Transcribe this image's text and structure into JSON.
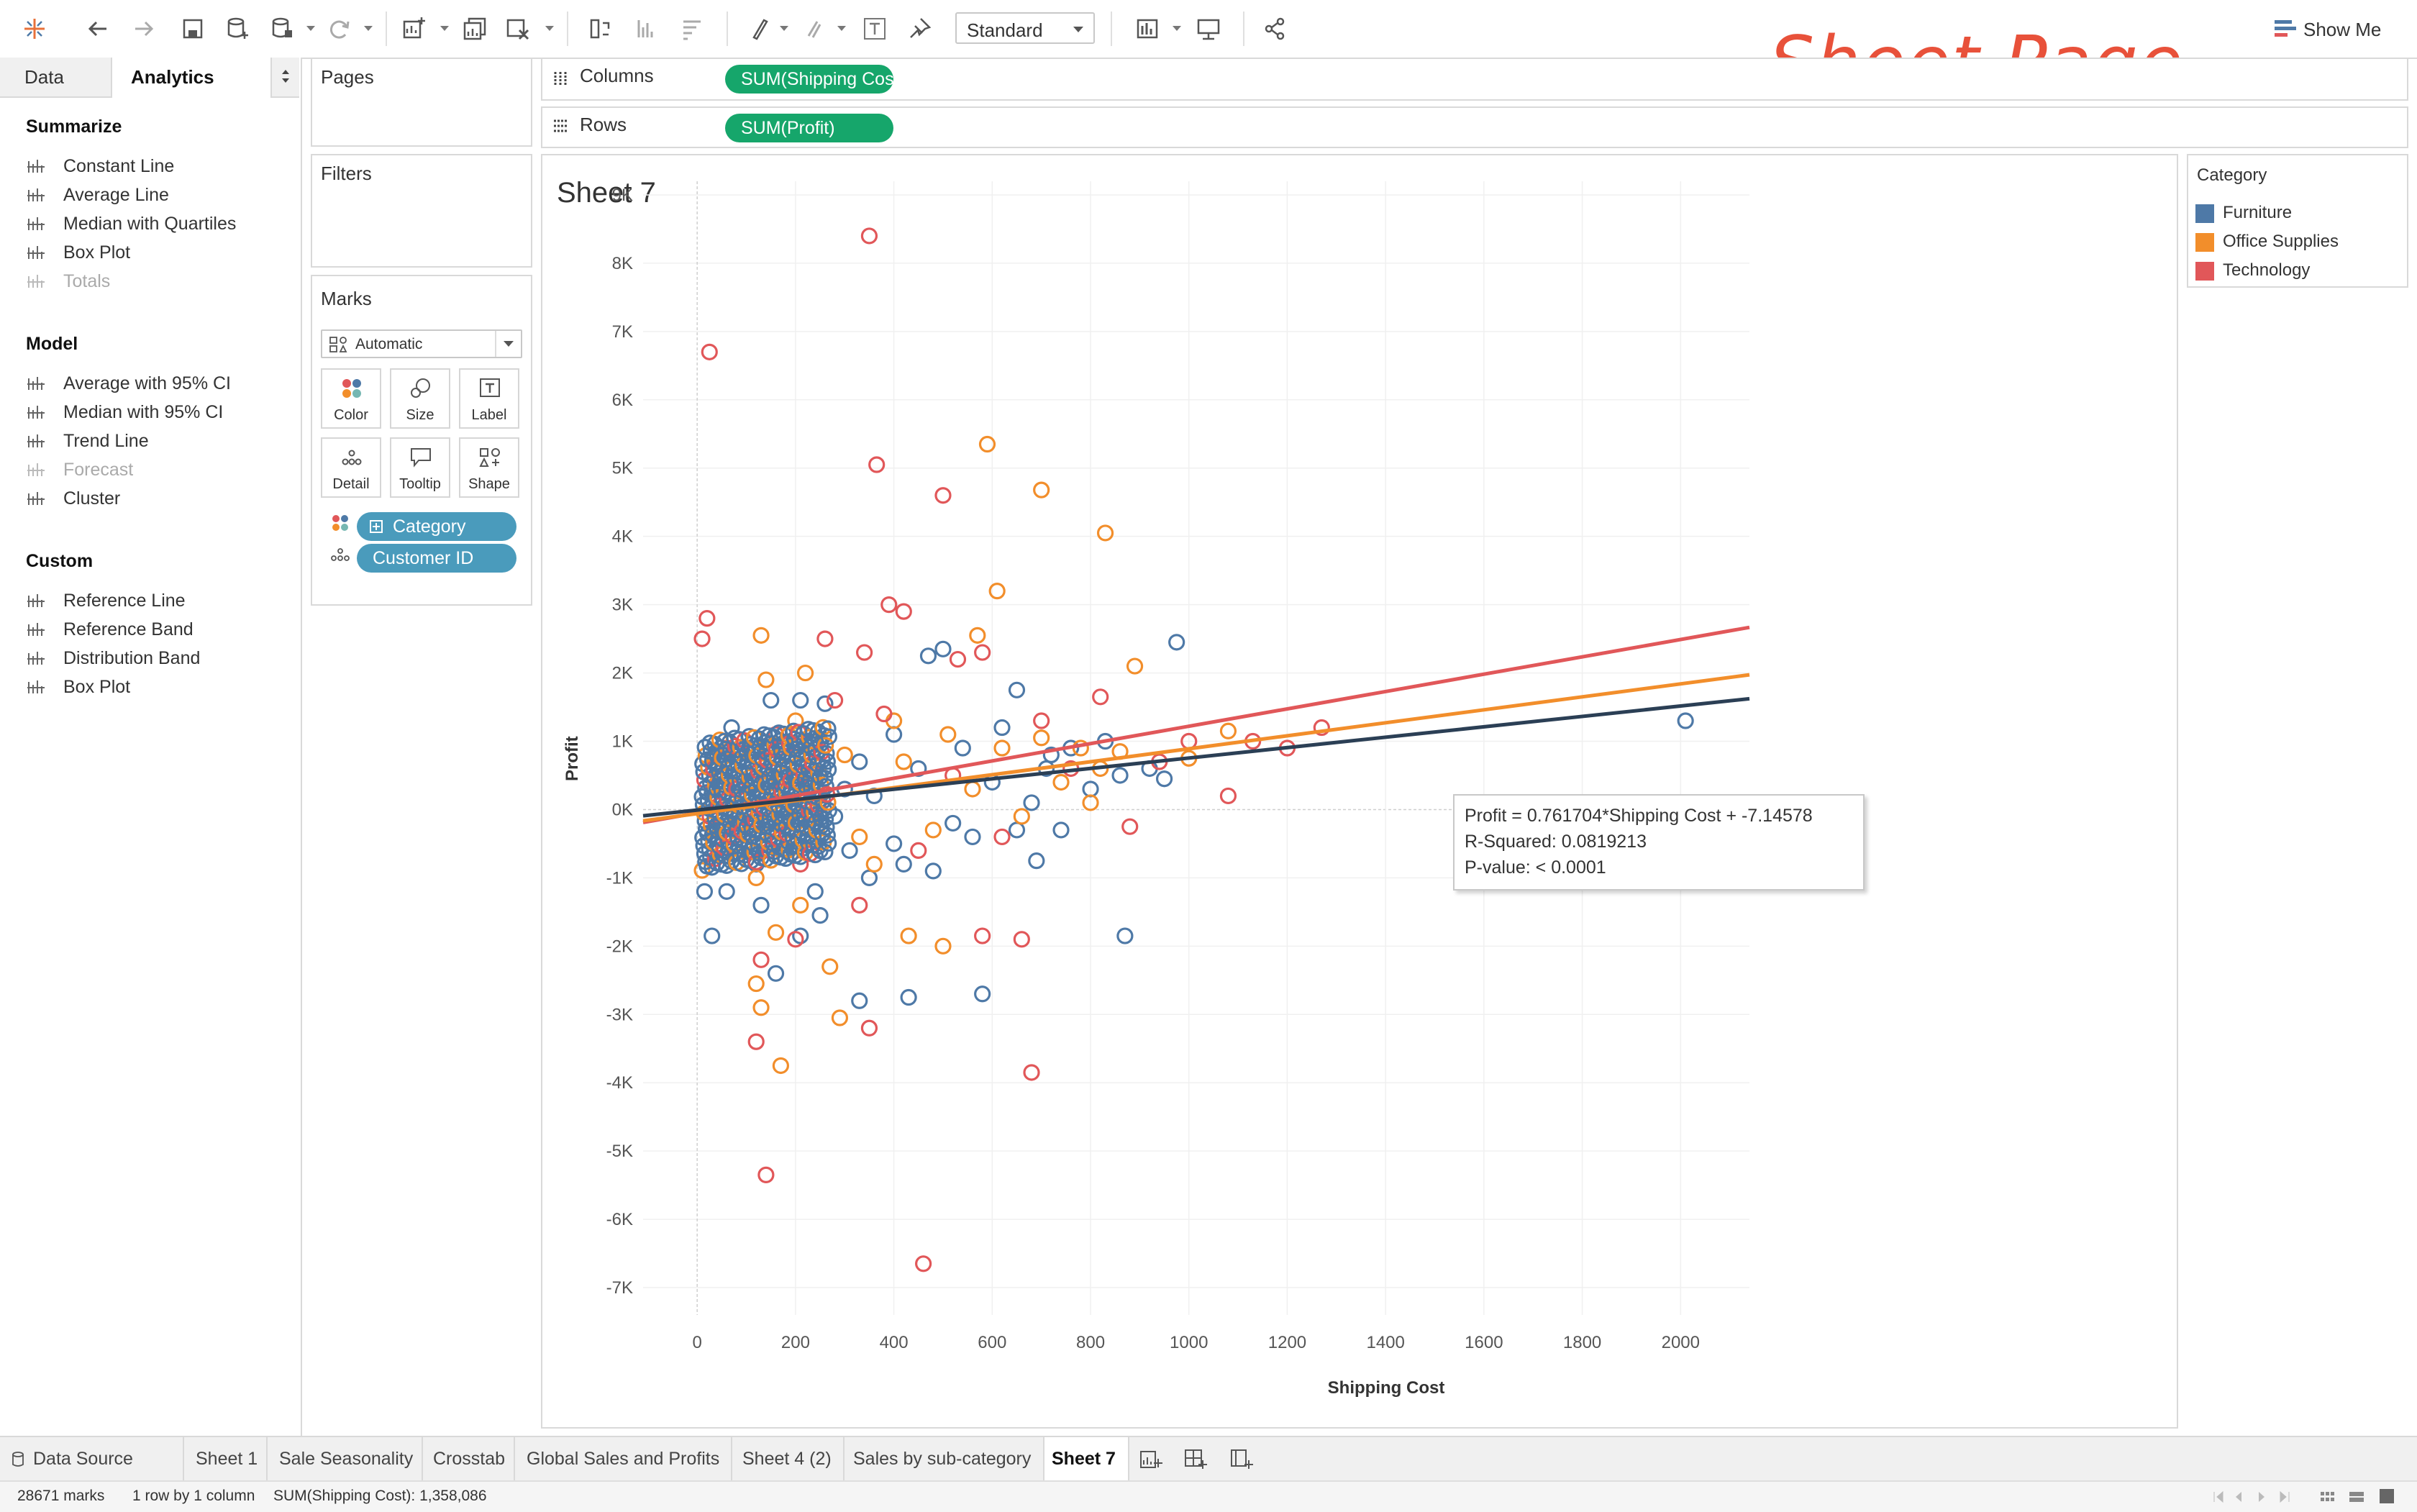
{
  "watermark": "Sheet Page",
  "toolbar": {
    "view_size": "Standard",
    "show_me": "Show Me",
    "icons": [
      "tableau-logo-icon",
      "undo-icon",
      "redo-icon",
      "save-icon",
      "new-datasource-icon",
      "datasource-icon",
      "refresh-icon",
      "new-worksheet-icon",
      "duplicate-sheet-icon",
      "clear-sheet-icon",
      "swap-icon",
      "sort-ascending-icon",
      "sort-descending-icon",
      "highlight-icon",
      "group-icon",
      "text-label-icon",
      "pin-icon",
      "fit-icon",
      "presentation-icon",
      "share-icon"
    ]
  },
  "left_pane": {
    "tabs": [
      "Data",
      "Analytics"
    ],
    "sections": [
      {
        "title": "Summarize",
        "items": [
          {
            "label": "Constant Line",
            "icon": "constant-line-icon",
            "enabled": true
          },
          {
            "label": "Average Line",
            "icon": "average-line-icon",
            "enabled": true
          },
          {
            "label": "Median with Quartiles",
            "icon": "median-quartiles-icon",
            "enabled": true
          },
          {
            "label": "Box Plot",
            "icon": "box-plot-icon",
            "enabled": true
          },
          {
            "label": "Totals",
            "icon": "totals-icon",
            "enabled": false
          }
        ]
      },
      {
        "title": "Model",
        "items": [
          {
            "label": "Average with 95% CI",
            "icon": "average-ci-icon",
            "enabled": true
          },
          {
            "label": "Median with 95% CI",
            "icon": "median-ci-icon",
            "enabled": true
          },
          {
            "label": "Trend Line",
            "icon": "trend-line-icon",
            "enabled": true
          },
          {
            "label": "Forecast",
            "icon": "forecast-icon",
            "enabled": false
          },
          {
            "label": "Cluster",
            "icon": "cluster-icon",
            "enabled": true
          }
        ]
      },
      {
        "title": "Custom",
        "items": [
          {
            "label": "Reference Line",
            "icon": "reference-line-icon",
            "enabled": true
          },
          {
            "label": "Reference Band",
            "icon": "reference-band-icon",
            "enabled": true
          },
          {
            "label": "Distribution Band",
            "icon": "distribution-band-icon",
            "enabled": true
          },
          {
            "label": "Box Plot",
            "icon": "box-plot-icon",
            "enabled": true
          }
        ]
      }
    ]
  },
  "cards": {
    "pages": "Pages",
    "filters": "Filters",
    "marks": "Marks",
    "mark_type": "Automatic",
    "mark_buttons": [
      "Color",
      "Size",
      "Label",
      "Detail",
      "Tooltip",
      "Shape"
    ],
    "mark_fields": [
      {
        "label": "Category",
        "role": "color"
      },
      {
        "label": "Customer ID",
        "role": "detail"
      }
    ]
  },
  "shelves": {
    "columns_label": "Columns",
    "columns_pill": "SUM(Shipping Cost)",
    "rows_label": "Rows",
    "rows_pill": "SUM(Profit)"
  },
  "legend": {
    "title": "Category",
    "items": [
      {
        "label": "Furniture",
        "color": "#4e79a7"
      },
      {
        "label": "Office Supplies",
        "color": "#f28e2b"
      },
      {
        "label": "Technology",
        "color": "#e15759"
      }
    ]
  },
  "tooltip": {
    "line1": "Profit = 0.761704*Shipping Cost + -7.14578",
    "line2": "R-Squared: 0.0819213",
    "line3": "P-value: < 0.0001"
  },
  "chart_data": {
    "type": "scatter",
    "title": "Sheet 7",
    "xlabel": "Shipping Cost",
    "ylabel": "Profit",
    "xlim": [
      -110,
      2140
    ],
    "ylim": [
      -7400,
      9200
    ],
    "x_ticks": [
      0,
      200,
      400,
      600,
      800,
      1000,
      1200,
      1400,
      1600,
      1800,
      2000
    ],
    "y_ticks": [
      9000,
      8000,
      7000,
      6000,
      5000,
      4000,
      3000,
      2000,
      1000,
      0,
      -1000,
      -2000,
      -3000,
      -4000,
      -5000,
      -6000,
      -7000
    ],
    "y_tick_labels": [
      "9K",
      "8K",
      "7K",
      "6K",
      "5K",
      "4K",
      "3K",
      "2K",
      "1K",
      "0K",
      "-1K",
      "-2K",
      "-3K",
      "-4K",
      "-5K",
      "-6K",
      "-7K"
    ],
    "x_tick_labels": [
      "0",
      "200",
      "400",
      "600",
      "800",
      "1000",
      "1200",
      "1400",
      "1600",
      "1800",
      "2000"
    ],
    "grid": true,
    "marker": "open-circle",
    "series": [
      {
        "name": "Furniture",
        "color": "#4e79a7",
        "trend": {
          "slope": 0.761704,
          "intercept": -7.14578
        },
        "points": [
          [
            2010,
            1300
          ],
          [
            975,
            2450
          ],
          [
            870,
            -1850
          ],
          [
            740,
            -300
          ],
          [
            690,
            -750
          ],
          [
            650,
            1750
          ],
          [
            500,
            2350
          ],
          [
            470,
            2250
          ],
          [
            430,
            -2750
          ],
          [
            330,
            -2800
          ],
          [
            580,
            -2700
          ],
          [
            250,
            -1550
          ],
          [
            210,
            -1850
          ],
          [
            160,
            -2400
          ],
          [
            30,
            -1850
          ],
          [
            720,
            800
          ],
          [
            560,
            -400
          ],
          [
            620,
            1200
          ],
          [
            400,
            1100
          ],
          [
            350,
            -1000
          ],
          [
            150,
            1600
          ],
          [
            210,
            1600
          ],
          [
            260,
            1550
          ],
          [
            120,
            -800
          ],
          [
            90,
            -300
          ],
          [
            50,
            500
          ],
          [
            300,
            300
          ],
          [
            180,
            -600
          ],
          [
            450,
            600
          ],
          [
            520,
            -200
          ],
          [
            100,
            200
          ],
          [
            200,
            0
          ],
          [
            250,
            -200
          ],
          [
            330,
            700
          ],
          [
            400,
            -500
          ],
          [
            600,
            400
          ],
          [
            680,
            100
          ],
          [
            800,
            300
          ],
          [
            860,
            500
          ],
          [
            920,
            600
          ],
          [
            950,
            450
          ],
          [
            60,
            -1200
          ],
          [
            130,
            -1400
          ],
          [
            240,
            -1200
          ],
          [
            310,
            -600
          ],
          [
            420,
            -800
          ],
          [
            15,
            -1200
          ],
          [
            40,
            -400
          ],
          [
            70,
            1200
          ],
          [
            140,
            900
          ],
          [
            170,
            -200
          ],
          [
            220,
            400
          ],
          [
            280,
            -100
          ],
          [
            360,
            200
          ],
          [
            480,
            -900
          ],
          [
            540,
            900
          ],
          [
            650,
            -300
          ],
          [
            710,
            600
          ],
          [
            760,
            900
          ],
          [
            830,
            1000
          ]
        ]
      },
      {
        "name": "Office Supplies",
        "color": "#f28e2b",
        "trend": {
          "slope": 0.95,
          "intercept": -60
        },
        "points": [
          [
            590,
            5350
          ],
          [
            700,
            4680
          ],
          [
            830,
            4050
          ],
          [
            610,
            3200
          ],
          [
            130,
            2550
          ],
          [
            570,
            2550
          ],
          [
            890,
            2100
          ],
          [
            1080,
            1150
          ],
          [
            1000,
            750
          ],
          [
            860,
            850
          ],
          [
            140,
            1900
          ],
          [
            220,
            2000
          ],
          [
            430,
            -1850
          ],
          [
            500,
            -2000
          ],
          [
            270,
            -2300
          ],
          [
            290,
            -3050
          ],
          [
            120,
            -2550
          ],
          [
            130,
            -2900
          ],
          [
            170,
            -3750
          ],
          [
            210,
            -1400
          ],
          [
            120,
            -1000
          ],
          [
            300,
            800
          ],
          [
            400,
            1300
          ],
          [
            510,
            1100
          ],
          [
            620,
            900
          ],
          [
            700,
            1050
          ],
          [
            780,
            900
          ],
          [
            820,
            600
          ],
          [
            480,
            -300
          ],
          [
            360,
            -800
          ],
          [
            200,
            1300
          ],
          [
            160,
            -1800
          ],
          [
            90,
            -200
          ],
          [
            250,
            200
          ],
          [
            330,
            -400
          ],
          [
            420,
            700
          ],
          [
            560,
            300
          ],
          [
            660,
            -100
          ],
          [
            740,
            400
          ],
          [
            800,
            100
          ]
        ]
      },
      {
        "name": "Technology",
        "color": "#e15759",
        "trend": {
          "slope": 1.27,
          "intercept": -50
        },
        "points": [
          [
            350,
            8400
          ],
          [
            25,
            6700
          ],
          [
            365,
            5050
          ],
          [
            500,
            4600
          ],
          [
            390,
            3000
          ],
          [
            420,
            2900
          ],
          [
            10,
            2500
          ],
          [
            20,
            2800
          ],
          [
            260,
            2500
          ],
          [
            340,
            2300
          ],
          [
            530,
            2200
          ],
          [
            580,
            2300
          ],
          [
            820,
            1650
          ],
          [
            1130,
            1000
          ],
          [
            1270,
            1200
          ],
          [
            1200,
            900
          ],
          [
            1080,
            200
          ],
          [
            880,
            -250
          ],
          [
            660,
            -1900
          ],
          [
            580,
            -1850
          ],
          [
            680,
            -3850
          ],
          [
            460,
            -6650
          ],
          [
            140,
            -5350
          ],
          [
            350,
            -3200
          ],
          [
            120,
            -3400
          ],
          [
            130,
            -2200
          ],
          [
            200,
            -1900
          ],
          [
            330,
            -1400
          ],
          [
            450,
            -600
          ],
          [
            620,
            -400
          ],
          [
            520,
            500
          ],
          [
            280,
            1600
          ],
          [
            160,
            1100
          ],
          [
            60,
            900
          ],
          [
            210,
            -800
          ],
          [
            380,
            1400
          ],
          [
            700,
            1300
          ],
          [
            760,
            600
          ],
          [
            940,
            700
          ],
          [
            1000,
            1000
          ]
        ]
      }
    ]
  },
  "sheet_tabs": {
    "items": [
      "Data Source",
      "Sheet 1",
      "Sale Seasonality",
      "Crosstab",
      "Global Sales and Profits",
      "Sheet 4 (2)",
      "Sales by sub-category",
      "Sheet 7"
    ],
    "active": "Sheet 7"
  },
  "status": {
    "marks": "28671 marks",
    "shape": "1 row by 1 column",
    "sum": "SUM(Shipping Cost): 1,358,086"
  }
}
